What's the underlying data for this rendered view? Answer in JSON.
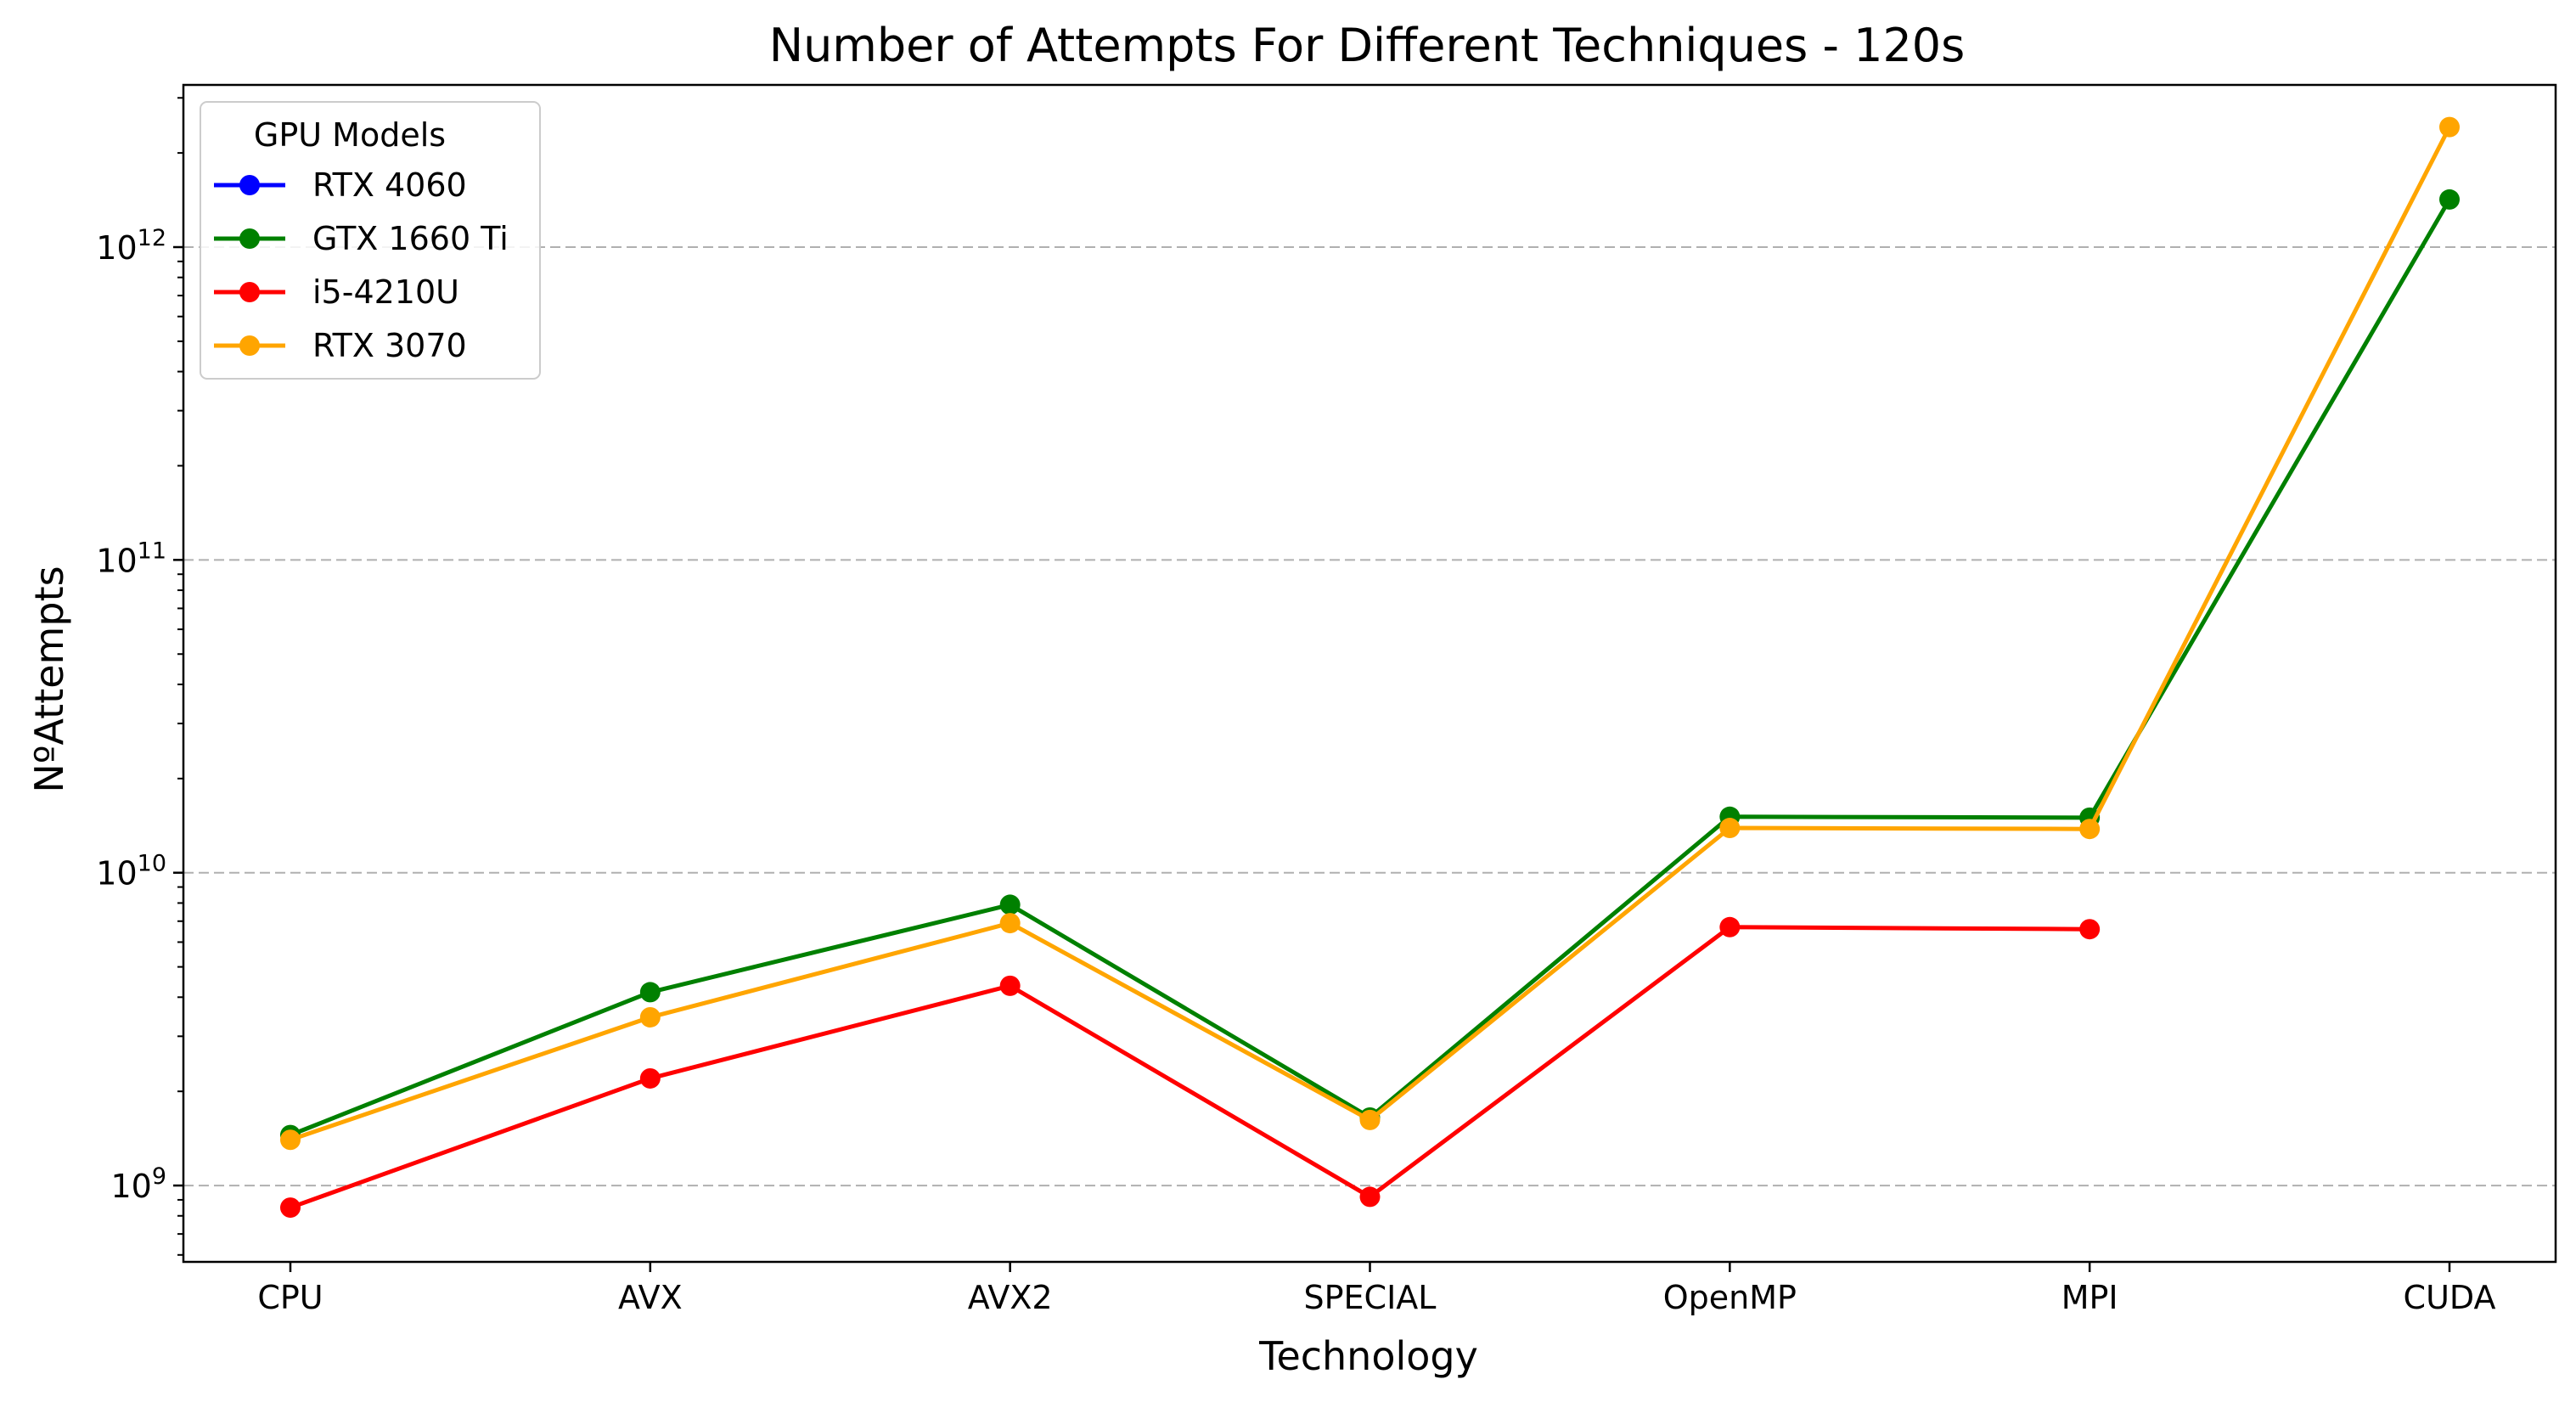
{
  "chart_data": {
    "type": "line",
    "title": "Number of Attempts For Different Techniques - 120s",
    "xlabel": "Technology",
    "ylabel": "NºAttempts",
    "y_scale": "log",
    "ylim": [
      570000000,
      3300000000000
    ],
    "y_ticks": [
      {
        "value": 1000000000,
        "base": "10",
        "exp": "9"
      },
      {
        "value": 10000000000,
        "base": "10",
        "exp": "10"
      },
      {
        "value": 100000000000,
        "base": "10",
        "exp": "11"
      },
      {
        "value": 1000000000000,
        "base": "10",
        "exp": "12"
      }
    ],
    "grid": "y-major-dashed",
    "categories": [
      "CPU",
      "AVX",
      "AVX2",
      "SPECIAL",
      "OpenMP",
      "MPI",
      "CUDA"
    ],
    "legend": {
      "title": "GPU Models",
      "position": "top-left"
    },
    "series": [
      {
        "name": "RTX 4060",
        "color": "#0000ff",
        "values": [
          null,
          null,
          null,
          null,
          null,
          null,
          null
        ]
      },
      {
        "name": "GTX 1660 Ti",
        "color": "#008000",
        "values": [
          1450000000,
          4150000000,
          7900000000,
          1650000000,
          15100000000,
          15000000000,
          1420000000000
        ]
      },
      {
        "name": "i5-4210U",
        "color": "#ff0000",
        "values": [
          850000000,
          2200000000,
          4350000000,
          920000000,
          6700000000,
          6600000000,
          null
        ]
      },
      {
        "name": "RTX 3070",
        "color": "#ffa500",
        "values": [
          1400000000,
          3450000000,
          6900000000,
          1620000000,
          13900000000,
          13800000000,
          2420000000000
        ]
      }
    ]
  }
}
